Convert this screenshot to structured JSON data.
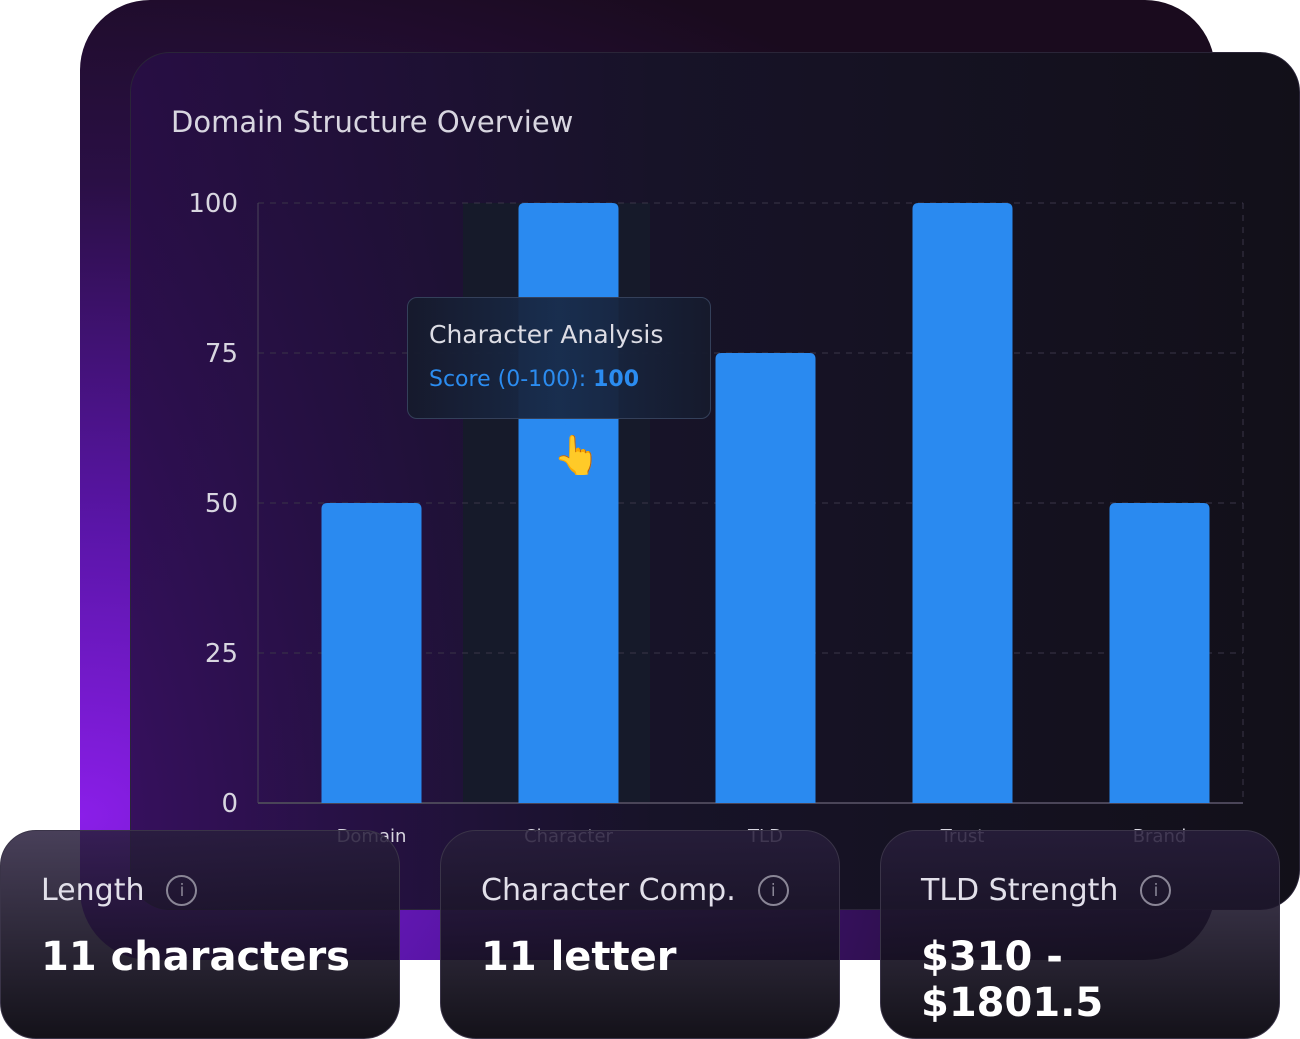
{
  "chart_data": {
    "type": "bar",
    "title": "Domain Structure Overview",
    "categories": [
      "Domain",
      "Character",
      "TLD",
      "Trust",
      "Brand"
    ],
    "values": [
      50,
      100,
      75,
      100,
      50
    ],
    "yticks": [
      0,
      25,
      50,
      75,
      100
    ],
    "ylim": [
      0,
      100
    ],
    "grid": true,
    "bar_color": "#2a8af0",
    "highlighted_index": 1
  },
  "tooltip": {
    "title": "Character Analysis",
    "label": "Score (0-100):",
    "value": "100"
  },
  "cards": [
    {
      "label": "Length",
      "value": "11 characters"
    },
    {
      "label": "Character Comp.",
      "value": "11 letter"
    },
    {
      "label": "TLD Strength",
      "value": "$310 - $1801.5"
    }
  ],
  "icons": {
    "info": "info-icon",
    "cursor": "hand-pointer-icon"
  }
}
